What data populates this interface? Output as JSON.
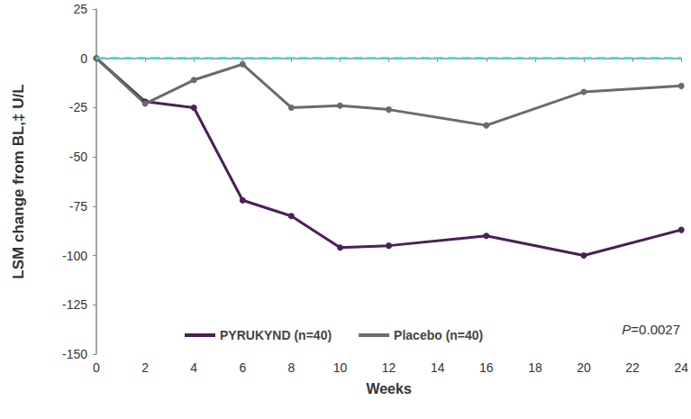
{
  "chart_data": {
    "type": "line",
    "x_label": "Weeks",
    "y_label": "LSM change from BL,‡ U/L",
    "x": [
      0,
      2,
      4,
      6,
      8,
      10,
      12,
      16,
      20,
      24
    ],
    "series": [
      {
        "name": "PYRUKYND (n=40)",
        "color": "#4b1f57",
        "marker": "circle",
        "line_style": "solid",
        "values": [
          0,
          -22,
          -25,
          -72,
          -80,
          -96,
          -95,
          -90,
          -100,
          -87
        ]
      },
      {
        "name": "Placebo (n=40)",
        "color": "#6b6b6b",
        "marker": "circle",
        "line_style": "solid",
        "values": [
          0,
          -23,
          -11,
          -3,
          -25,
          -24,
          -26,
          -34,
          -17,
          -14
        ]
      }
    ],
    "reference_lines": [
      {
        "y": 0,
        "color": "#3fdccf",
        "line_style": "dashed"
      }
    ],
    "annotations": [
      {
        "text": "P=0.0027"
      }
    ],
    "xlim": [
      0,
      24
    ],
    "xticks": [
      0,
      2,
      4,
      6,
      8,
      10,
      12,
      14,
      16,
      18,
      20,
      22,
      24
    ],
    "ylim": [
      -150,
      25
    ],
    "yticks": [
      -150,
      -125,
      -100,
      -75,
      -50,
      -25,
      0,
      25
    ],
    "grid": false,
    "legend": "bottom"
  }
}
